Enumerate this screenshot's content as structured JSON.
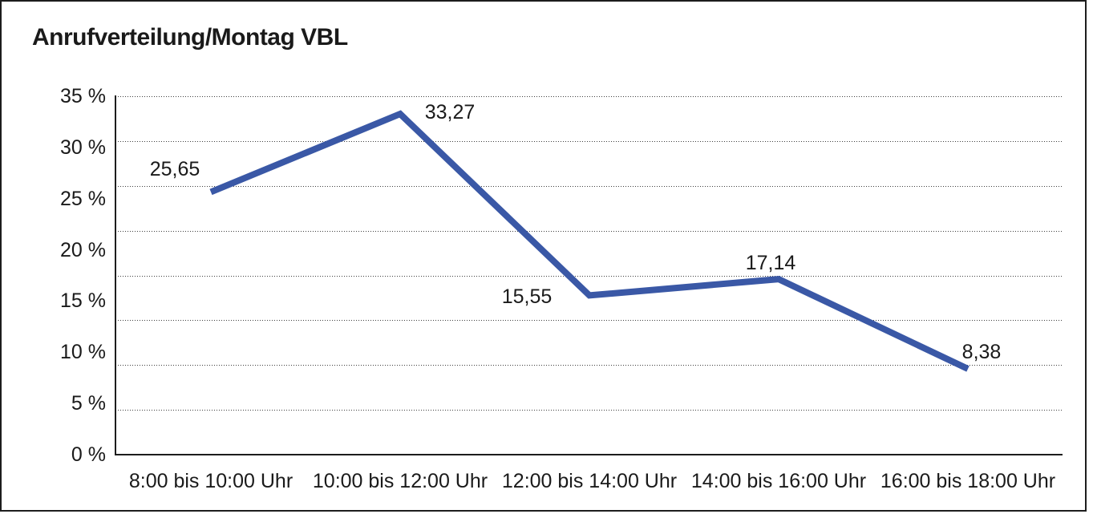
{
  "chart_data": {
    "type": "line",
    "title": "Anrufverteilung/Montag VBL",
    "categories": [
      "8:00 bis 10:00 Uhr",
      "10:00 bis 12:00 Uhr",
      "12:00 bis 14:00 Uhr",
      "14:00 bis 16:00 Uhr",
      "16:00 bis 18:00 Uhr"
    ],
    "values": [
      25.65,
      33.27,
      15.55,
      17.14,
      8.38
    ],
    "data_labels": [
      "25,65",
      "33,27",
      "15,55",
      "17,14",
      "8,38"
    ],
    "y_ticks": [
      "35 %",
      "30 %",
      "25 %",
      "20 %",
      "15 %",
      "10 %",
      "5 %",
      "0 %"
    ],
    "ylim": [
      0,
      35
    ],
    "y_tick_step": 5,
    "gridline_count": 8,
    "grid": "horizontal-dotted",
    "legend": "none",
    "xlabel": "",
    "ylabel": "",
    "line_color": "#3A58A6",
    "text_color": "#1a1a1a",
    "axis_color": "#1d1d1d"
  }
}
